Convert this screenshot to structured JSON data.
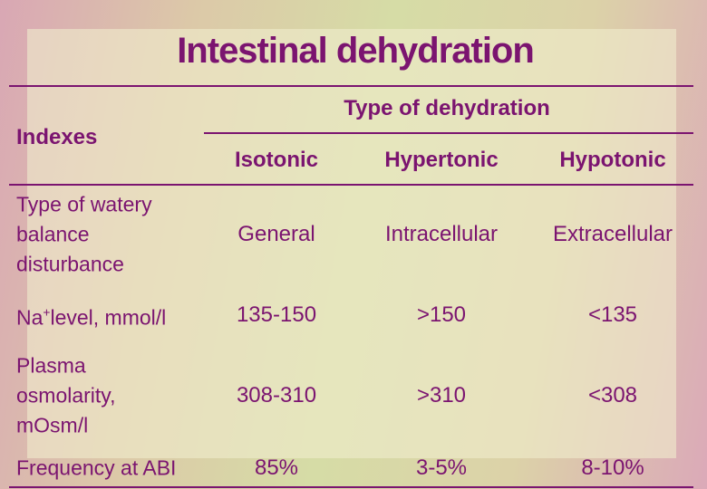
{
  "title": "Intestinal dehydration",
  "table": {
    "index_header": "Indexes",
    "group_header": "Type of dehydration",
    "columns": [
      "Isotonic",
      "Hypertonic",
      "Hypotonic"
    ],
    "rows": [
      {
        "label": [
          "Type of watery",
          "balance",
          "disturbance"
        ],
        "cells": [
          "General",
          "Intracellular",
          "Extracellular"
        ]
      },
      {
        "label": [
          "Na",
          "+",
          "level, mmol/l"
        ],
        "cells": [
          "135-150",
          ">150",
          "<135"
        ]
      },
      {
        "label": [
          "Plasma",
          "osmolarity,",
          "mOsm/l"
        ],
        "cells": [
          "308-310",
          ">310",
          "<308"
        ]
      },
      {
        "label": [
          "Frequency at ABI"
        ],
        "cells": [
          "85%",
          "3-5%",
          "8-10%"
        ]
      }
    ]
  }
}
